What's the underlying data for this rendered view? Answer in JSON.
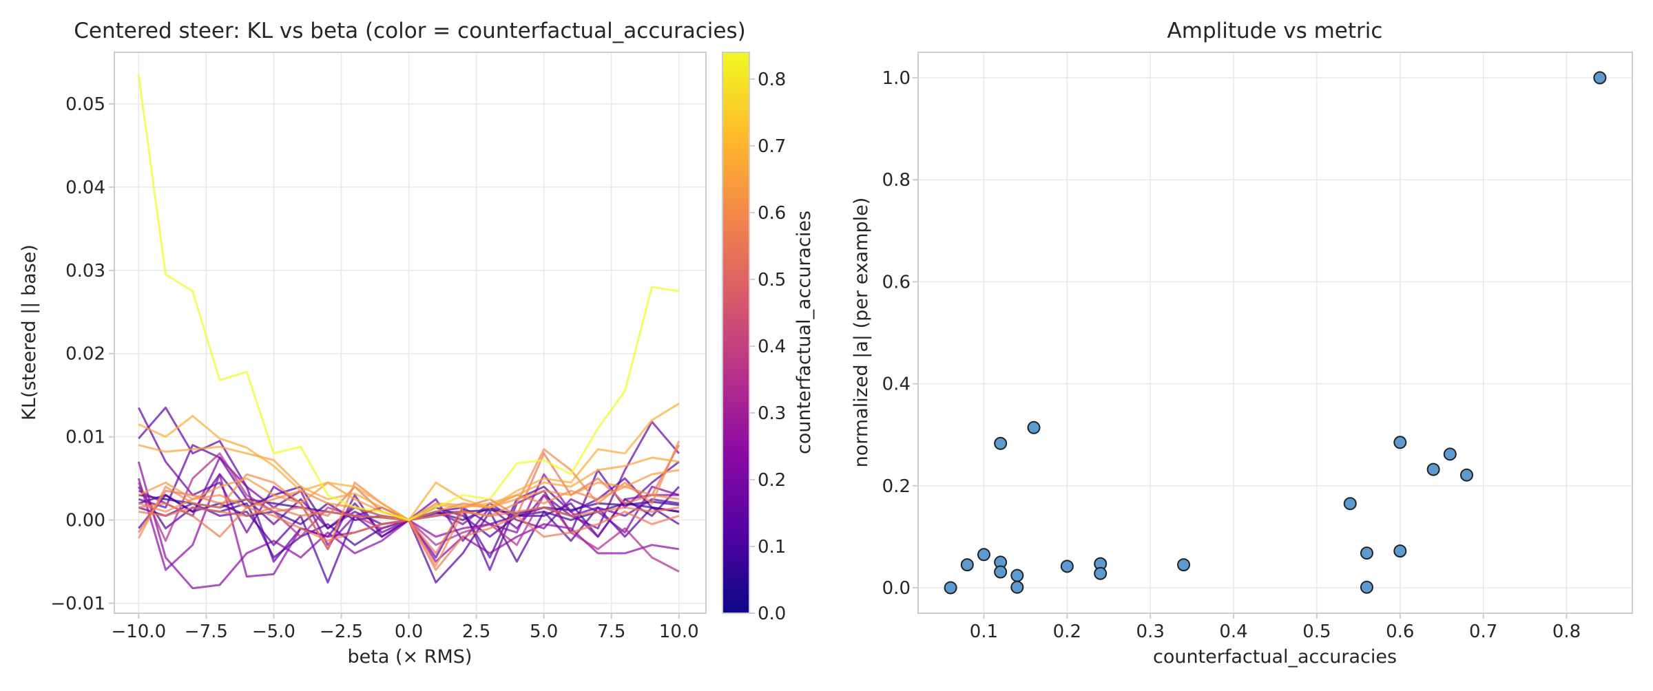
{
  "chart_data": [
    {
      "type": "line",
      "title": "Centered steer: KL vs beta (color = counterfactual_accuracies)",
      "xlabel": "beta (× RMS)",
      "ylabel": "KL(steered || base)",
      "xlim": [
        -10.9,
        11.0
      ],
      "ylim": [
        -0.0112,
        0.0562
      ],
      "xticks": [
        -10,
        -7.5,
        -5,
        -2.5,
        0,
        2.5,
        5,
        7.5,
        10
      ],
      "xtick_labels": [
        "−10.0",
        "−7.5",
        "−5.0",
        "−2.5",
        "0.0",
        "2.5",
        "5.0",
        "7.5",
        "10.0"
      ],
      "yticks": [
        -0.01,
        0,
        0.01,
        0.02,
        0.03,
        0.04,
        0.05
      ],
      "ytick_labels": [
        "−0.01",
        "0.00",
        "0.01",
        "0.02",
        "0.03",
        "0.04",
        "0.05"
      ],
      "grid": true,
      "colormap": "plasma",
      "x": [
        -10,
        -9,
        -8,
        -7,
        -6,
        -5,
        -4,
        -3,
        -2,
        -1,
        0,
        1,
        2,
        3,
        4,
        5,
        6,
        7,
        8,
        9,
        10
      ],
      "series": [
        {
          "metric": 0.84,
          "values": [
            0.0535,
            0.0295,
            0.0275,
            0.0168,
            0.0178,
            0.008,
            0.0088,
            0.003,
            0.0015,
            0.001,
            0.0,
            0.0015,
            0.003,
            0.0025,
            0.0068,
            0.0072,
            0.0055,
            0.011,
            0.0155,
            0.028,
            0.0275
          ]
        },
        {
          "metric": 0.68,
          "values": [
            0.0115,
            0.01,
            0.0125,
            0.0098,
            0.0087,
            0.0065,
            0.0035,
            0.0045,
            0.004,
            0.002,
            0.0,
            0.0045,
            0.0025,
            0.0015,
            0.0035,
            0.005,
            0.0045,
            0.0085,
            0.008,
            0.012,
            0.014
          ]
        },
        {
          "metric": 0.66,
          "values": [
            0.009,
            0.0082,
            0.0085,
            0.0088,
            0.008,
            0.0072,
            0.004,
            0.0025,
            0.0032,
            0.0015,
            0.0,
            0.0018,
            0.0015,
            0.002,
            0.003,
            0.0045,
            0.004,
            0.006,
            0.0065,
            0.0075,
            0.007
          ]
        },
        {
          "metric": 0.64,
          "values": [
            0.003,
            0.0045,
            0.0025,
            0.004,
            0.005,
            0.003,
            0.002,
            0.0045,
            0.0025,
            0.001,
            0.0,
            0.002,
            0.0018,
            0.0015,
            0.0025,
            0.0035,
            0.003,
            0.0045,
            0.004,
            0.0055,
            0.006
          ]
        },
        {
          "metric": 0.6,
          "values": [
            -0.0022,
            0.004,
            0.002,
            0.0015,
            0.0055,
            0.0045,
            0.002,
            -0.0035,
            0.0045,
            0.002,
            0.0,
            -0.0055,
            0.001,
            0.0005,
            0.002,
            0.0085,
            0.006,
            0.002,
            0.0045,
            0.002,
            0.0095
          ]
        },
        {
          "metric": 0.6,
          "values": [
            0.002,
            0.001,
            0.0025,
            0.003,
            0.0015,
            0.0025,
            0.0035,
            0.002,
            0.0015,
            0.0005,
            0.0,
            0.001,
            0.002,
            0.0015,
            0.003,
            0.002,
            0.0035,
            0.0025,
            0.004,
            0.003,
            0.0025
          ]
        },
        {
          "metric": 0.56,
          "values": [
            0.0015,
            0.002,
            0.0005,
            -0.002,
            0.0015,
            0.0005,
            -0.001,
            -0.0025,
            -0.0015,
            -0.0005,
            0.0,
            -0.006,
            -0.002,
            -0.001,
            0.0005,
            -0.002,
            -0.0015,
            -0.0005,
            0.001,
            -0.0005,
            0.0005
          ]
        },
        {
          "metric": 0.56,
          "values": [
            0.001,
            0.0005,
            0.0015,
            0.001,
            0.0005,
            0.0015,
            0.0005,
            0.001,
            0.0005,
            0.0003,
            0.0,
            0.0005,
            0.001,
            0.0005,
            0.001,
            0.0015,
            0.0005,
            0.001,
            0.0015,
            0.001,
            0.0015
          ]
        },
        {
          "metric": 0.54,
          "values": [
            -0.0015,
            0.0035,
            0.003,
            0.002,
            0.0025,
            0.001,
            0.0015,
            0.0005,
            0.004,
            0.001,
            0.0,
            -0.004,
            0.0015,
            0.0025,
            0.0005,
            0.008,
            0.003,
            0.005,
            0.002,
            0.003,
            0.009
          ]
        },
        {
          "metric": 0.34,
          "values": [
            0.0045,
            -0.0025,
            0.005,
            0.008,
            0.003,
            0.001,
            -0.002,
            0.0015,
            0.0005,
            -0.001,
            0.0,
            -0.003,
            -0.0015,
            -0.0005,
            -0.003,
            0.003,
            -0.0015,
            -0.0035,
            -0.001,
            -0.0045,
            -0.0062
          ]
        },
        {
          "metric": 0.24,
          "values": [
            0.007,
            -0.0045,
            -0.0082,
            -0.0078,
            -0.004,
            -0.0025,
            -0.0045,
            -0.0015,
            -0.004,
            -0.0025,
            0.0,
            -0.005,
            -0.002,
            -0.004,
            -0.002,
            -0.0005,
            -0.001,
            -0.004,
            -0.004,
            -0.003,
            -0.0035
          ]
        },
        {
          "metric": 0.24,
          "values": [
            0.005,
            -0.006,
            -0.003,
            0.0055,
            -0.0068,
            -0.0065,
            -0.001,
            -0.002,
            -0.0015,
            -0.0005,
            0.0,
            -0.002,
            -0.001,
            -0.0005,
            -0.0015,
            0.0055,
            0.001,
            -0.002,
            0.0025,
            0.003,
            0.003
          ]
        },
        {
          "metric": 0.2,
          "values": [
            0.0035,
            0.002,
            0.0005,
            0.0075,
            0.004,
            0.0015,
            0.0035,
            -0.003,
            0.0005,
            0.0015,
            0.0,
            0.001,
            -0.0005,
            0.002,
            0.0,
            -0.001,
            0.0025,
            0.001,
            -0.0015,
            0.004,
            0.003
          ]
        },
        {
          "metric": 0.16,
          "values": [
            0.0135,
            0.007,
            0.003,
            0.0045,
            -0.0015,
            0.004,
            0.002,
            -0.0035,
            0.003,
            -0.002,
            0.0,
            0.0025,
            -0.0025,
            0.0015,
            -0.001,
            0.003,
            0.0005,
            -0.001,
            0.006,
            0.0118,
            0.008
          ]
        },
        {
          "metric": 0.14,
          "values": [
            0.0098,
            0.0135,
            0.008,
            0.0095,
            0.004,
            -0.005,
            -0.001,
            -0.002,
            0.002,
            -0.0015,
            0.0,
            -0.0045,
            0.0015,
            -0.006,
            0.002,
            0.0035,
            -0.0015,
            0.006,
            0.0015,
            0.0045,
            0.007
          ]
        },
        {
          "metric": 0.14,
          "values": [
            0.0025,
            0.0015,
            0.009,
            0.0075,
            0.0025,
            -0.0005,
            0.0025,
            -0.001,
            0.0015,
            0.0005,
            0.0,
            0.001,
            0.0015,
            -0.0005,
            0.0005,
            0.0015,
            0.0005,
            0.0015,
            0.0005,
            0.0025,
            0.002
          ]
        },
        {
          "metric": 0.12,
          "values": [
            -0.001,
            0.003,
            0.001,
            0.0055,
            0.0015,
            0.003,
            0.004,
            -0.001,
            0.001,
            -0.0005,
            0.0,
            0.0005,
            0.001,
            -0.0045,
            0.0025,
            0.004,
            0.001,
            0.0025,
            0.005,
            0.0015,
            -0.0005
          ]
        },
        {
          "metric": 0.12,
          "values": [
            0.0015,
            0.0005,
            0.002,
            0.0005,
            0.001,
            -0.003,
            0.0005,
            -0.0075,
            0.0005,
            -0.002,
            0.0,
            -0.0075,
            -0.004,
            0.001,
            -0.005,
            0.001,
            -0.0025,
            0.0015,
            -0.002,
            0.0015,
            0.001
          ]
        },
        {
          "metric": 0.1,
          "values": [
            0.004,
            -0.001,
            0.0015,
            0.001,
            0.002,
            -0.0045,
            -0.002,
            -0.0005,
            -0.003,
            -0.001,
            0.0,
            0.0015,
            0.0005,
            -0.002,
            0.0005,
            0.0005,
            0.002,
            -0.002,
            0.0025,
            0.0005,
            0.004
          ]
        },
        {
          "metric": 0.08,
          "values": [
            0.002,
            0.003,
            0.001,
            0.002,
            0.0005,
            0.001,
            -0.0005,
            0.002,
            0.0,
            0.0005,
            0.0,
            0.001,
            0.0,
            0.0015,
            0.0005,
            0.001,
            0.0,
            0.001,
            0.002,
            0.0015,
            0.001
          ]
        },
        {
          "metric": 0.06,
          "values": [
            0.003,
            0.0025,
            0.002,
            0.0015,
            0.0025,
            0.002,
            0.0015,
            0.001,
            0.0005,
            0.0003,
            0.0,
            0.0008,
            0.001,
            0.0012,
            0.0008,
            0.0015,
            0.0012,
            0.002,
            0.0018,
            0.0022,
            0.0018
          ]
        }
      ],
      "colorbar": {
        "label": "counterfactual_accuracies",
        "range": [
          0.0,
          0.84
        ],
        "ticks": [
          0.0,
          0.1,
          0.2,
          0.3,
          0.4,
          0.5,
          0.6,
          0.7,
          0.8
        ],
        "tick_labels": [
          "0.0",
          "0.1",
          "0.2",
          "0.3",
          "0.4",
          "0.5",
          "0.6",
          "0.7",
          "0.8"
        ],
        "colormap": "plasma"
      }
    },
    {
      "type": "scatter",
      "title": "Amplitude vs metric",
      "xlabel": "counterfactual_accuracies",
      "ylabel": "normalized |a| (per example)",
      "xlim": [
        0.021,
        0.879
      ],
      "ylim": [
        -0.05,
        1.05
      ],
      "xticks": [
        0.1,
        0.2,
        0.3,
        0.4,
        0.5,
        0.6,
        0.7,
        0.8
      ],
      "xtick_labels": [
        "0.1",
        "0.2",
        "0.3",
        "0.4",
        "0.5",
        "0.6",
        "0.7",
        "0.8"
      ],
      "yticks": [
        0.0,
        0.2,
        0.4,
        0.6,
        0.8,
        1.0
      ],
      "ytick_labels": [
        "0.0",
        "0.2",
        "0.4",
        "0.6",
        "0.8",
        "1.0"
      ],
      "grid": true,
      "marker_color": "#5b9bd0",
      "marker_edge": "#222222",
      "points": [
        {
          "x": 0.06,
          "y": 0.0
        },
        {
          "x": 0.08,
          "y": 0.045
        },
        {
          "x": 0.1,
          "y": 0.065
        },
        {
          "x": 0.12,
          "y": 0.05
        },
        {
          "x": 0.12,
          "y": 0.031
        },
        {
          "x": 0.12,
          "y": 0.283
        },
        {
          "x": 0.14,
          "y": 0.024
        },
        {
          "x": 0.14,
          "y": 0.001
        },
        {
          "x": 0.16,
          "y": 0.314
        },
        {
          "x": 0.2,
          "y": 0.042
        },
        {
          "x": 0.24,
          "y": 0.047
        },
        {
          "x": 0.24,
          "y": 0.028
        },
        {
          "x": 0.34,
          "y": 0.045
        },
        {
          "x": 0.54,
          "y": 0.165
        },
        {
          "x": 0.56,
          "y": 0.068
        },
        {
          "x": 0.56,
          "y": 0.001
        },
        {
          "x": 0.6,
          "y": 0.285
        },
        {
          "x": 0.6,
          "y": 0.072
        },
        {
          "x": 0.64,
          "y": 0.232
        },
        {
          "x": 0.66,
          "y": 0.262
        },
        {
          "x": 0.68,
          "y": 0.221
        },
        {
          "x": 0.84,
          "y": 1.0
        }
      ]
    }
  ]
}
